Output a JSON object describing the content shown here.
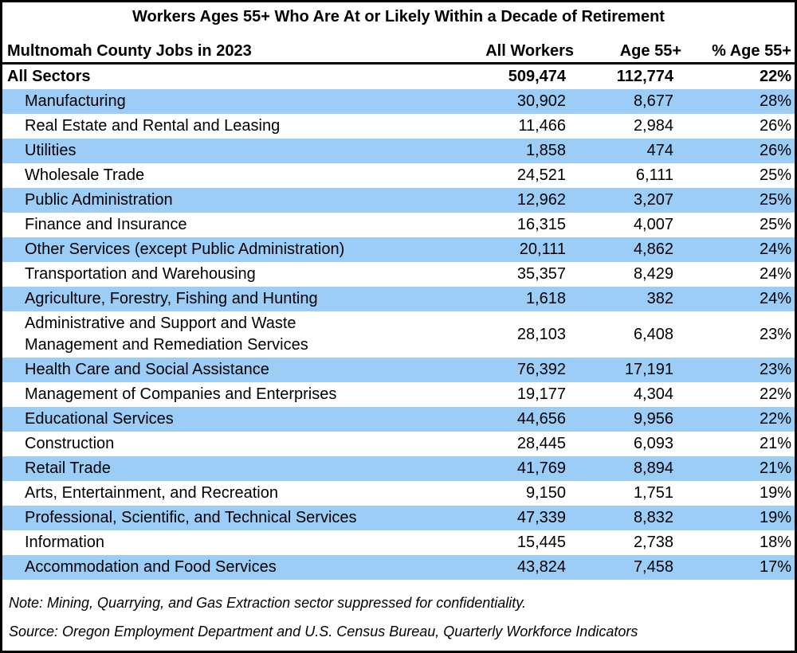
{
  "title": "Workers Ages 55+ Who Are At or Likely Within a Decade of Retirement",
  "colors": {
    "row_highlight": "#9CCDF7",
    "border": "#000000",
    "background": "#FFFFFF",
    "text": "#000000"
  },
  "table": {
    "columns": {
      "label": "Multnomah County Jobs in 2023",
      "all_workers": "All Workers",
      "age_55_plus": "Age 55+",
      "pct_age_55_plus": "% Age 55+"
    },
    "total_row": {
      "label": "All Sectors",
      "all_workers": "509,474",
      "age_55_plus": "112,774",
      "pct_age_55_plus": "22%"
    },
    "rows": [
      {
        "label": "Manufacturing",
        "all_workers": "30,902",
        "age_55_plus": "8,677",
        "pct_age_55_plus": "28%"
      },
      {
        "label": "Real Estate and Rental and Leasing",
        "all_workers": "11,466",
        "age_55_plus": "2,984",
        "pct_age_55_plus": "26%"
      },
      {
        "label": "Utilities",
        "all_workers": "1,858",
        "age_55_plus": "474",
        "pct_age_55_plus": "26%"
      },
      {
        "label": "Wholesale Trade",
        "all_workers": "24,521",
        "age_55_plus": "6,111",
        "pct_age_55_plus": "25%"
      },
      {
        "label": "Public Administration",
        "all_workers": "12,962",
        "age_55_plus": "3,207",
        "pct_age_55_plus": "25%"
      },
      {
        "label": "Finance and Insurance",
        "all_workers": "16,315",
        "age_55_plus": "4,007",
        "pct_age_55_plus": "25%"
      },
      {
        "label": "Other Services (except Public Administration)",
        "all_workers": "20,111",
        "age_55_plus": "4,862",
        "pct_age_55_plus": "24%"
      },
      {
        "label": "Transportation and Warehousing",
        "all_workers": "35,357",
        "age_55_plus": "8,429",
        "pct_age_55_plus": "24%"
      },
      {
        "label": "Agriculture, Forestry, Fishing and Hunting",
        "all_workers": "1,618",
        "age_55_plus": "382",
        "pct_age_55_plus": "24%"
      },
      {
        "label": "Administrative and Support and Waste\nManagement and Remediation Services",
        "all_workers": "28,103",
        "age_55_plus": "6,408",
        "pct_age_55_plus": "23%"
      },
      {
        "label": "Health Care and Social Assistance",
        "all_workers": "76,392",
        "age_55_plus": "17,191",
        "pct_age_55_plus": "23%"
      },
      {
        "label": "Management of Companies and Enterprises",
        "all_workers": "19,177",
        "age_55_plus": "4,304",
        "pct_age_55_plus": "22%"
      },
      {
        "label": "Educational Services",
        "all_workers": "44,656",
        "age_55_plus": "9,956",
        "pct_age_55_plus": "22%"
      },
      {
        "label": "Construction",
        "all_workers": "28,445",
        "age_55_plus": "6,093",
        "pct_age_55_plus": "21%"
      },
      {
        "label": "Retail Trade",
        "all_workers": "41,769",
        "age_55_plus": "8,894",
        "pct_age_55_plus": "21%"
      },
      {
        "label": "Arts, Entertainment, and Recreation",
        "all_workers": "9,150",
        "age_55_plus": "1,751",
        "pct_age_55_plus": "19%"
      },
      {
        "label": "Professional, Scientific, and Technical Services",
        "all_workers": "47,339",
        "age_55_plus": "8,832",
        "pct_age_55_plus": "19%"
      },
      {
        "label": "Information",
        "all_workers": "15,445",
        "age_55_plus": "2,738",
        "pct_age_55_plus": "18%"
      },
      {
        "label": "Accommodation and Food Services",
        "all_workers": "43,824",
        "age_55_plus": "7,458",
        "pct_age_55_plus": "17%"
      }
    ]
  },
  "notes": {
    "note": "Note: Mining, Quarrying, and Gas Extraction sector suppressed for confidentiality.",
    "source": "Source: Oregon Employment Department and U.S. Census Bureau, Quarterly Workforce Indicators"
  }
}
